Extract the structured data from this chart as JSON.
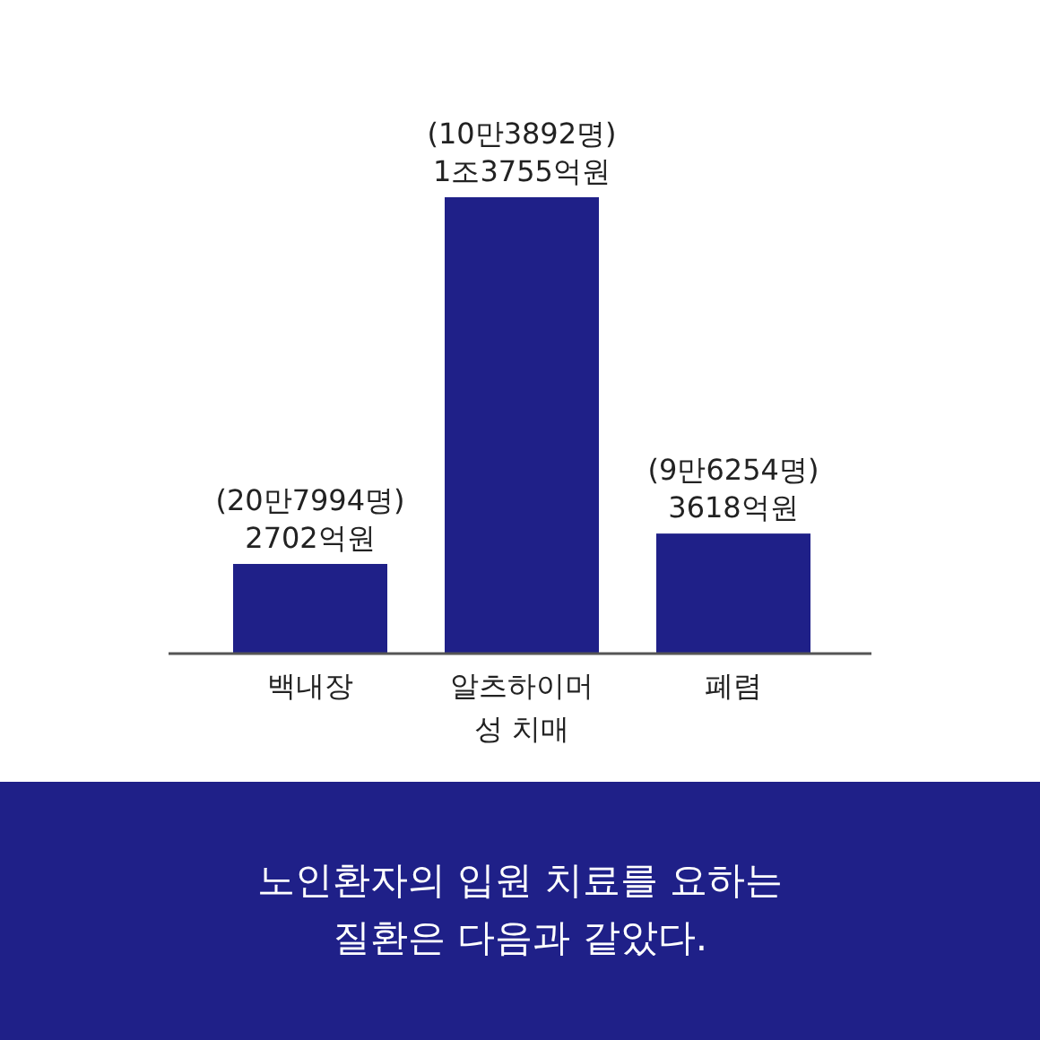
{
  "chart_data": {
    "type": "bar",
    "title": "노인환자의 입원 치료를 요하는 질환은 다음과 같았다.",
    "categories": [
      "백내장",
      "알츠하이머 성 치매",
      "폐렴"
    ],
    "values": [
      2702,
      13755,
      3618
    ],
    "color": "#1f2088",
    "value_labels": [
      "(20만7994명) 2702억원",
      "(10만3892명) 1조3755억원",
      "(9만6254명) 3618억원"
    ]
  }
}
